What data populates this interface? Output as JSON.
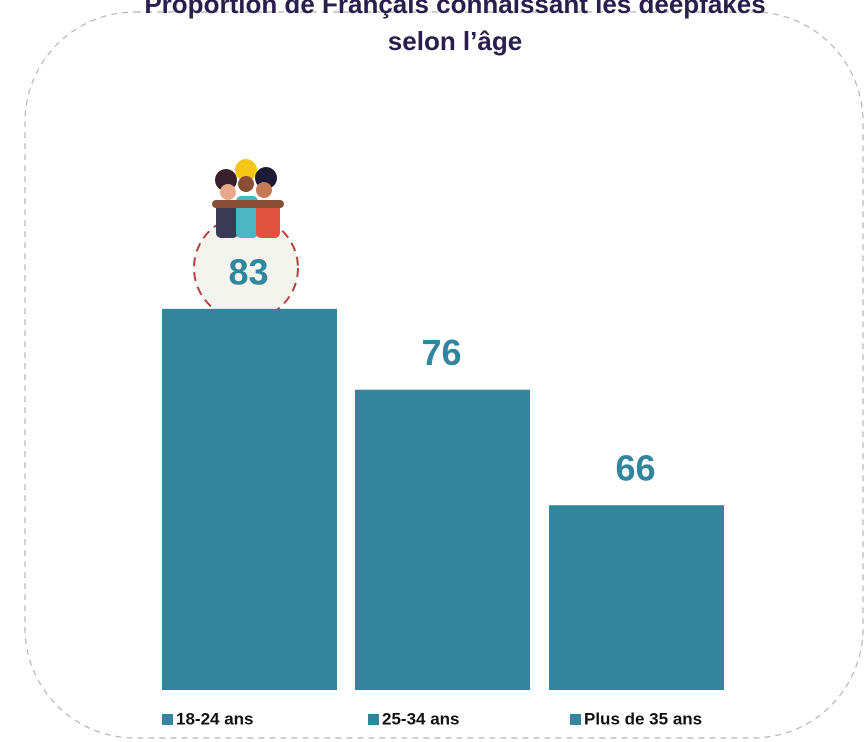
{
  "chart_data": {
    "type": "bar",
    "title": "Proportion de Français connaissant les deepfakes selon l’âge",
    "categories": [
      "18-24 ans",
      "25-34 ans",
      "Plus de 35 ans"
    ],
    "values": [
      83,
      76,
      66
    ],
    "color": "#31869d",
    "ylim": [
      50,
      90
    ]
  }
}
